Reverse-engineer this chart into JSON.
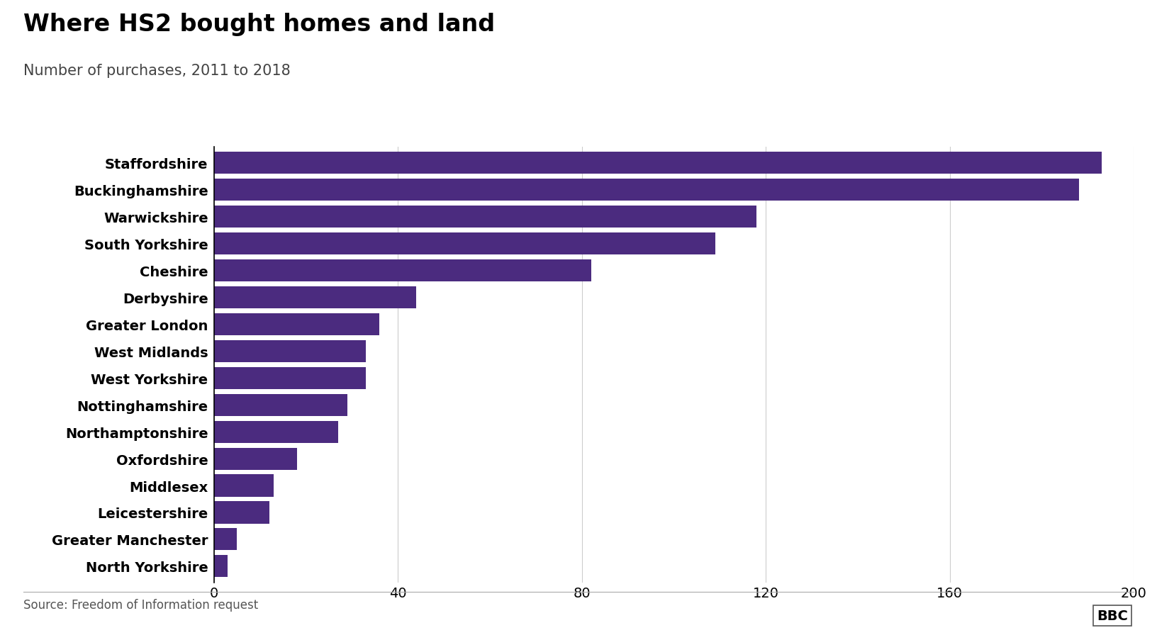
{
  "title": "Where HS2 bought homes and land",
  "subtitle": "Number of purchases, 2011 to 2018",
  "source": "Source: Freedom of Information request",
  "categories": [
    "Staffordshire",
    "Buckinghamshire",
    "Warwickshire",
    "South Yorkshire",
    "Cheshire",
    "Derbyshire",
    "Greater London",
    "West Midlands",
    "West Yorkshire",
    "Nottinghamshire",
    "Northamptonshire",
    "Oxfordshire",
    "Middlesex",
    "Leicestershire",
    "Greater Manchester",
    "North Yorkshire"
  ],
  "values": [
    193,
    188,
    118,
    109,
    82,
    44,
    36,
    33,
    33,
    29,
    27,
    18,
    13,
    12,
    5,
    3
  ],
  "bar_color": "#4B2B7F",
  "xlim": [
    0,
    200
  ],
  "xticks": [
    0,
    40,
    80,
    120,
    160,
    200
  ],
  "title_fontsize": 24,
  "subtitle_fontsize": 15,
  "tick_fontsize": 14,
  "source_fontsize": 12,
  "background_color": "#ffffff",
  "bar_height": 0.82
}
